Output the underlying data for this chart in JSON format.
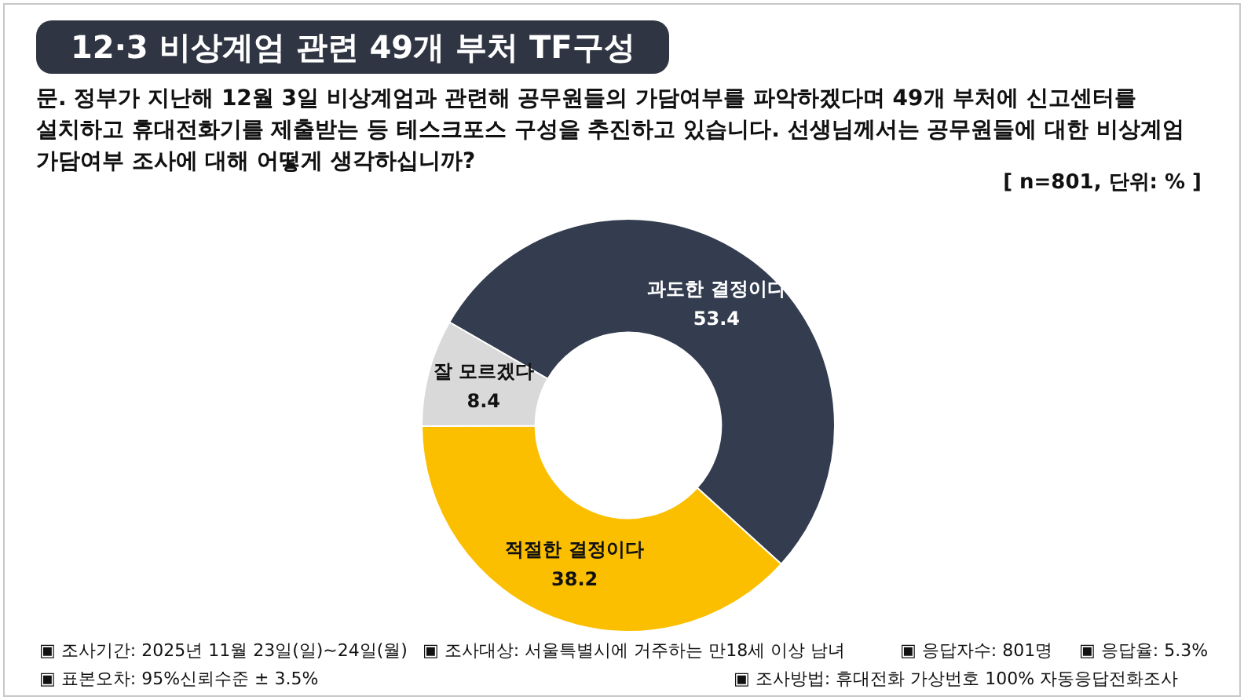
{
  "chart_data": {
    "type": "donut",
    "title": "12·3 비상계엄 관련 49개 부처 TF구성",
    "subtitle": "문. 정부가 지난해 12월 3일 비상계엄과 관련해 공무원들의 가담여부를 파악하겠다며 49개 부처에 신고센터를 설치하고 휴대전화기를 제출받는 등 테스크포스 구성을 추진하고 있습니다. 선생님께서는 공무원들에 대한 비상계엄 가담여부 조사에 대해 어떻게 생각하십니까?",
    "categories": [
      "과도한 결정이다",
      "적절한 결정이다",
      "잘 모르겠다"
    ],
    "values": [
      53.4,
      38.2,
      8.4
    ],
    "colors": [
      "#333d4f",
      "#fbbf00",
      "#d9d9d9"
    ],
    "data_labels": true,
    "legend": false,
    "annotations": [
      "[ n=801, 단위: % ]",
      "▣ 조사기간: 2025년 11월 23일(일)~24일(월)",
      "▣ 조사대상: 서울특별시에 거주하는 만18세 이상 남녀",
      "▣ 응답자수: 801명",
      "▣ 응답율: 5.3%",
      "▣ 표본오차: 95%신뢰수준 ± 3.5%",
      "▣ 조사방법: 휴대전화 가상번호 100% 자동응답전화조사"
    ]
  }
}
